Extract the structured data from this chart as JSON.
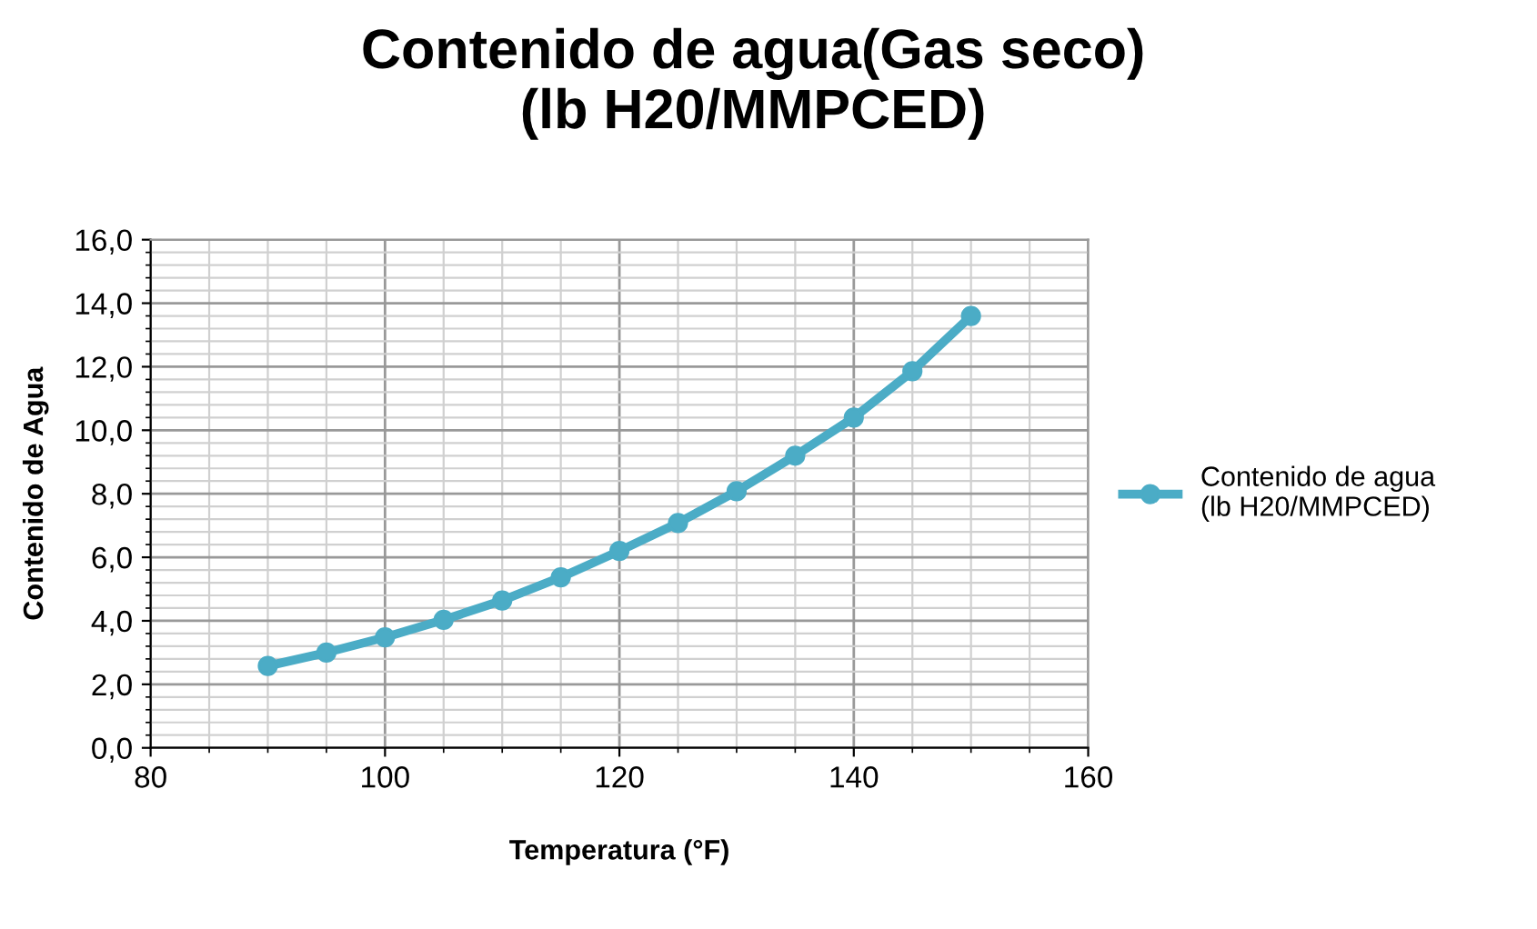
{
  "chart_data": {
    "type": "line",
    "title": "Contenido de agua(Gas seco)\n(lb H20/MMPCED)",
    "xlabel": "Temperatura (°F)",
    "ylabel": "Contenido de Agua",
    "x": [
      90,
      95,
      100,
      105,
      110,
      115,
      120,
      125,
      130,
      135,
      140,
      145,
      150
    ],
    "series": [
      {
        "name": "Contenido de agua\n(lb H20/MMPCED)",
        "color": "#4bacc6",
        "values": [
          2.58,
          3.0,
          3.48,
          4.03,
          4.64,
          5.37,
          6.2,
          7.08,
          8.08,
          9.2,
          10.4,
          11.86,
          13.6
        ]
      }
    ],
    "xlim": [
      80,
      160
    ],
    "xticks": [
      80,
      100,
      120,
      140,
      160
    ],
    "ylim": [
      0,
      16
    ],
    "yticks": [
      {
        "value": 0,
        "label": "0,0"
      },
      {
        "value": 2,
        "label": "2,0"
      },
      {
        "value": 4,
        "label": "4,0"
      },
      {
        "value": 6,
        "label": "6,0"
      },
      {
        "value": 8,
        "label": "8,0"
      },
      {
        "value": 10,
        "label": "10,0"
      },
      {
        "value": 12,
        "label": "12,0"
      },
      {
        "value": 14,
        "label": "14,0"
      },
      {
        "value": 16,
        "label": "16,0"
      }
    ],
    "grid": true,
    "legend": "right",
    "marker": "circle",
    "line_style": "solid"
  }
}
